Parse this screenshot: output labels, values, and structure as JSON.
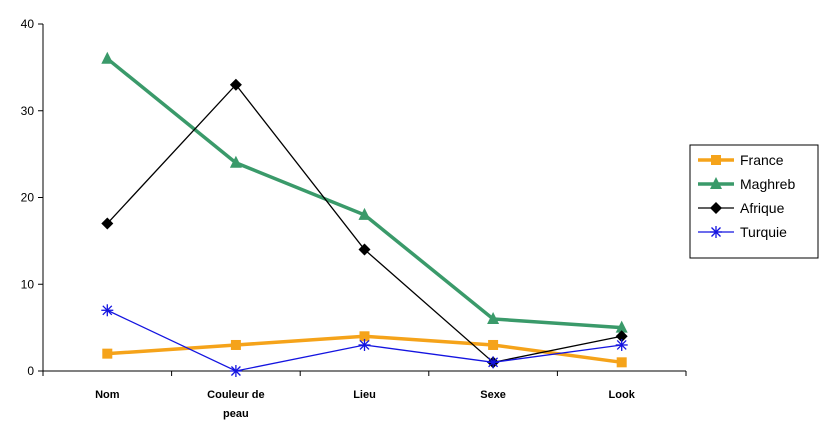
{
  "chart_data": {
    "type": "line",
    "categories": [
      [
        "Nom"
      ],
      [
        "Couleur de",
        "peau"
      ],
      [
        "Lieu"
      ],
      [
        "Sexe"
      ],
      [
        "Look"
      ]
    ],
    "ylim": [
      0,
      40
    ],
    "yticks": [
      0,
      10,
      20,
      30,
      40
    ],
    "grid": false,
    "legend_position": "right",
    "series": [
      {
        "name": "France",
        "color": "#F5A31A",
        "marker": "square",
        "values": [
          2,
          3,
          4,
          3,
          1
        ]
      },
      {
        "name": "Maghreb",
        "color": "#3A9A6A",
        "marker": "triangle",
        "values": [
          36,
          24,
          18,
          6,
          5
        ]
      },
      {
        "name": "Afrique",
        "color": "#000000",
        "marker": "diamond",
        "values": [
          17,
          33,
          14,
          1,
          4
        ]
      },
      {
        "name": "Turquie",
        "color": "#1414E0",
        "marker": "asterisk",
        "values": [
          7,
          0,
          3,
          1,
          3
        ]
      }
    ]
  }
}
